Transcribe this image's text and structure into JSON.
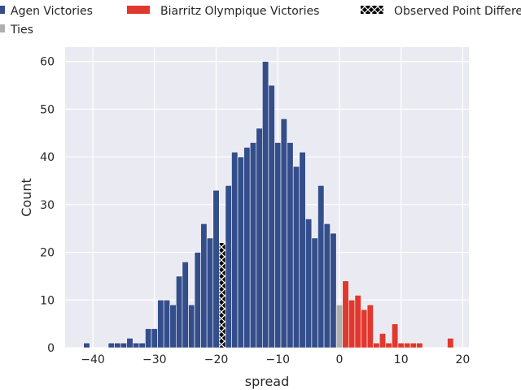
{
  "chart_data": {
    "type": "bar",
    "xlabel": "spread",
    "ylabel": "Count",
    "xlim": [
      -44.5,
      21
    ],
    "ylim": [
      0,
      63
    ],
    "xticks": [
      -40,
      -30,
      -20,
      -10,
      0,
      10,
      20
    ],
    "yticks": [
      0,
      10,
      20,
      30,
      40,
      50,
      60
    ],
    "grid": true,
    "legend_placement": "top",
    "legend": [
      {
        "label": "Agen Victories",
        "color": "#344e8b"
      },
      {
        "label": "Biarritz Olympique Victories",
        "color": "#e0382e"
      },
      {
        "label": "Observed Point Difference",
        "color": "#000000",
        "hatch": true
      },
      {
        "label": "Ties",
        "color": "#b0b0b0"
      }
    ],
    "series": [
      {
        "name": "Agen Victories",
        "color": "#344e8b",
        "x": [
          -41,
          -37,
          -36,
          -35,
          -34,
          -33,
          -32,
          -31,
          -30,
          -29,
          -28,
          -27,
          -26,
          -25,
          -24,
          -23,
          -22,
          -21,
          -20,
          -18,
          -17,
          -16,
          -15,
          -14,
          -13,
          -12,
          -11,
          -10,
          -9,
          -8,
          -7,
          -6,
          -5,
          -4,
          -3,
          -2,
          -1
        ],
        "values": [
          1,
          1,
          1,
          1,
          2,
          1,
          1,
          4,
          4,
          10,
          10,
          9,
          15,
          18,
          9,
          20,
          26,
          23,
          33,
          34,
          41,
          40,
          42,
          43,
          46,
          60,
          55,
          43,
          48,
          43,
          38,
          41,
          27,
          23,
          34,
          26,
          24
        ]
      },
      {
        "name": "Ties",
        "color": "#b0b0b0",
        "x": [
          0
        ],
        "values": [
          9
        ]
      },
      {
        "name": "Biarritz Olympique Victories",
        "color": "#e0382e",
        "x": [
          1,
          2,
          3,
          4,
          5,
          6,
          7,
          8,
          9,
          10,
          11,
          12,
          13,
          18
        ],
        "values": [
          14,
          10,
          11,
          8,
          9,
          1,
          3,
          1,
          5,
          1,
          1,
          1,
          1,
          2
        ]
      },
      {
        "name": "Observed Point Difference",
        "color": "#000000",
        "hatch": true,
        "x": [
          -19
        ],
        "values": [
          22
        ]
      }
    ]
  }
}
